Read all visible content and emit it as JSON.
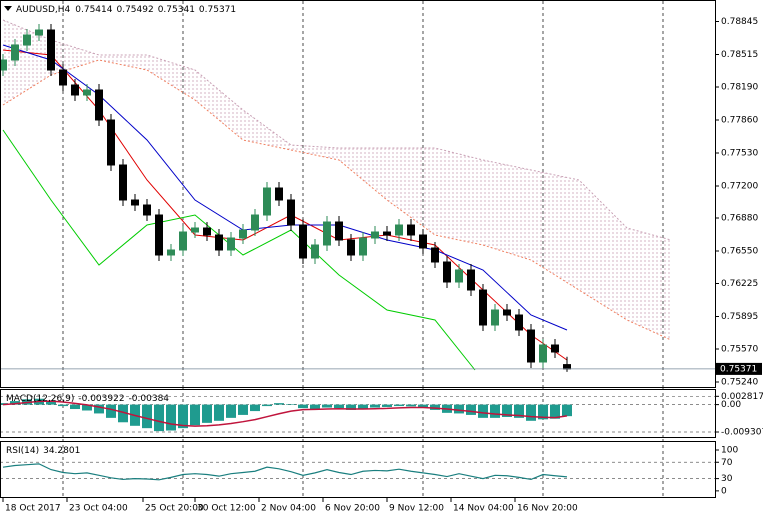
{
  "chart_data": [
    {
      "type": "candlestick",
      "title": "AUDUSD,H4",
      "x": [
        0,
        3,
        6,
        9,
        12,
        15,
        18,
        21,
        24,
        27,
        30,
        33,
        36,
        39,
        42,
        45,
        48,
        51,
        54,
        57,
        60,
        63,
        66,
        69,
        72,
        75,
        78,
        81,
        84,
        87,
        90,
        93,
        96,
        99,
        102,
        105,
        108,
        111,
        114,
        117,
        120,
        123,
        126,
        129,
        132,
        135,
        138,
        141
      ],
      "open": [
        0.7836,
        0.7846,
        0.7861,
        0.7871,
        0.7876,
        0.7836,
        0.7821,
        0.7811,
        0.7816,
        0.7786,
        0.7741,
        0.7706,
        0.7701,
        0.7691,
        0.7651,
        0.7656,
        0.7674,
        0.7678,
        0.7671,
        0.7656,
        0.7668,
        0.7676,
        0.7691,
        0.7718,
        0.7706,
        0.7681,
        0.7648,
        0.7661,
        0.7684,
        0.7666,
        0.7651,
        0.7668,
        0.7674,
        0.7671,
        0.7681,
        0.7671,
        0.7658,
        0.7644,
        0.7624,
        0.7636,
        0.7616,
        0.7581,
        0.7596,
        0.7591,
        0.7576,
        0.7544,
        0.7561,
        0.75414
      ],
      "high": [
        0.7852,
        0.7867,
        0.7877,
        0.7882,
        0.7882,
        0.7842,
        0.7827,
        0.7822,
        0.7822,
        0.7792,
        0.7747,
        0.7712,
        0.7707,
        0.7697,
        0.7662,
        0.768,
        0.7684,
        0.7684,
        0.7677,
        0.7674,
        0.7682,
        0.7697,
        0.7724,
        0.7724,
        0.7712,
        0.7687,
        0.7667,
        0.769,
        0.769,
        0.7672,
        0.7674,
        0.768,
        0.768,
        0.7687,
        0.7687,
        0.7677,
        0.7664,
        0.765,
        0.7642,
        0.7642,
        0.7622,
        0.7602,
        0.7602,
        0.7597,
        0.7582,
        0.7567,
        0.7567,
        0.75492
      ],
      "low": [
        0.783,
        0.784,
        0.7855,
        0.7865,
        0.783,
        0.7815,
        0.7805,
        0.7805,
        0.778,
        0.7735,
        0.77,
        0.7695,
        0.7685,
        0.7645,
        0.7645,
        0.765,
        0.7668,
        0.7665,
        0.765,
        0.765,
        0.7662,
        0.767,
        0.7685,
        0.77,
        0.7675,
        0.7642,
        0.7642,
        0.7655,
        0.766,
        0.7645,
        0.7645,
        0.7662,
        0.7665,
        0.7665,
        0.7665,
        0.7652,
        0.7638,
        0.7618,
        0.7618,
        0.761,
        0.7575,
        0.7575,
        0.7585,
        0.757,
        0.7538,
        0.7538,
        0.7548,
        0.75341
      ],
      "close": [
        0.7846,
        0.7861,
        0.7871,
        0.7876,
        0.7836,
        0.7821,
        0.7811,
        0.7816,
        0.7786,
        0.7741,
        0.7706,
        0.7701,
        0.7691,
        0.7651,
        0.7656,
        0.7674,
        0.7678,
        0.7671,
        0.7656,
        0.7668,
        0.7676,
        0.7691,
        0.7718,
        0.7706,
        0.7681,
        0.7648,
        0.7661,
        0.7684,
        0.7666,
        0.7651,
        0.7668,
        0.7674,
        0.7671,
        0.7681,
        0.7671,
        0.7658,
        0.7644,
        0.7624,
        0.7636,
        0.7616,
        0.7581,
        0.7596,
        0.7591,
        0.7576,
        0.7544,
        0.7561,
        0.7554,
        0.75371
      ],
      "up_color": "#2e8b57",
      "down_color": "#000000",
      "series": [
        {
          "color": "#e00000",
          "x": [
            0,
            12,
            24,
            36,
            48,
            60,
            72,
            84,
            96,
            108,
            120,
            132,
            141
          ],
          "values": [
            0.7856,
            0.7851,
            0.7796,
            0.7726,
            0.7671,
            0.7666,
            0.7691,
            0.7666,
            0.7671,
            0.7661,
            0.7616,
            0.7571,
            0.7546
          ]
        },
        {
          "color": "#0000c8",
          "x": [
            0,
            12,
            24,
            36,
            48,
            60,
            72,
            84,
            96,
            108,
            120,
            132,
            141
          ],
          "values": [
            0.7861,
            0.7846,
            0.7811,
            0.7766,
            0.7706,
            0.7676,
            0.7681,
            0.7681,
            0.7666,
            0.7656,
            0.7636,
            0.7591,
            0.7576
          ]
        },
        {
          "color": "#00cc00",
          "x": [
            0,
            12,
            24,
            36,
            48,
            60,
            72,
            84,
            96,
            108,
            118
          ],
          "values": [
            0.7776,
            0.7706,
            0.7641,
            0.7681,
            0.7691,
            0.7651,
            0.7676,
            0.7631,
            0.7596,
            0.7586,
            0.7536
          ]
        }
      ],
      "cloud": [
        {
          "color": "#c8a0b4",
          "x": [
            0,
            12,
            24,
            36,
            48,
            60,
            72,
            84,
            96,
            108,
            120,
            132,
            144,
            156,
            167
          ],
          "values": [
            0.7886,
            0.7866,
            0.7851,
            0.7851,
            0.7836,
            0.7796,
            0.7761,
            0.7758,
            0.7758,
            0.7758,
            0.7746,
            0.7736,
            0.7726,
            0.7678,
            0.7666
          ]
        },
        {
          "color": "#f08060",
          "x": [
            0,
            12,
            24,
            36,
            48,
            60,
            72,
            84,
            96,
            108,
            120,
            132,
            144,
            156,
            167
          ],
          "values": [
            0.7801,
            0.7831,
            0.7846,
            0.7836,
            0.7806,
            0.7766,
            0.7756,
            0.7746,
            0.7706,
            0.7671,
            0.7661,
            0.7646,
            0.7616,
            0.7586,
            0.7566
          ]
        }
      ],
      "xlim": [
        -0.75,
        178
      ],
      "ylim": [
        0.7519,
        0.7903
      ],
      "yticks": [
        0.78845,
        0.78515,
        {
          "value": 0.7819,
          "label": "0.78190"
        },
        {
          "value": 0.7786,
          "label": "0.77860"
        },
        {
          "value": 0.7753,
          "label": "0.77530"
        },
        {
          "value": 0.772,
          "label": "0.77200"
        },
        {
          "value": 0.7688,
          "label": "0.76880"
        },
        {
          "value": 0.7655,
          "label": "0.76550"
        },
        0.76225,
        0.75895,
        {
          "value": 0.7557,
          "label": "0.75570"
        },
        {
          "value": 0.7524,
          "label": "0.75240"
        }
      ],
      "xticks": [
        {
          "value": 0,
          "label": "18 Oct 2017"
        },
        {
          "value": 16,
          "label": "23 Oct 04:00"
        },
        {
          "value": 35,
          "label": "25 Oct 20:00"
        },
        {
          "value": 48,
          "label": "30 Oct 12:00"
        },
        {
          "value": 64,
          "label": "2 Nov 04:00"
        },
        {
          "value": 80,
          "label": "6 Nov 20:00"
        },
        {
          "value": 96,
          "label": "9 Nov 12:00"
        },
        {
          "value": 112,
          "label": "14 Nov 04:00"
        },
        {
          "value": 128,
          "label": "16 Nov 20:00"
        }
      ]
    },
    {
      "type": "macd",
      "title": "MACD(12,26,9)",
      "x": [
        0,
        3,
        6,
        9,
        12,
        15,
        18,
        21,
        24,
        27,
        30,
        33,
        36,
        39,
        42,
        45,
        48,
        51,
        54,
        57,
        60,
        63,
        66,
        69,
        72,
        75,
        78,
        81,
        84,
        87,
        90,
        93,
        96,
        99,
        102,
        105,
        108,
        111,
        114,
        117,
        120,
        123,
        126,
        129,
        132,
        135,
        138,
        141
      ],
      "macd": [
        0.0005,
        0.0012,
        0.0018,
        0.002,
        0.001,
        -0.0005,
        -0.0015,
        -0.002,
        -0.003,
        -0.0045,
        -0.006,
        -0.0072,
        -0.008,
        -0.009,
        -0.0088,
        -0.008,
        -0.007,
        -0.0062,
        -0.0055,
        -0.0045,
        -0.0035,
        -0.0022,
        -0.0005,
        0.0005,
        0.0002,
        -0.0012,
        -0.0015,
        -0.001,
        -0.0012,
        -0.0018,
        -0.0015,
        -0.001,
        -0.0008,
        -0.0005,
        -0.0006,
        -0.001,
        -0.0018,
        -0.0028,
        -0.003,
        -0.0035,
        -0.0045,
        -0.0045,
        -0.0042,
        -0.0045,
        -0.0055,
        -0.005,
        -0.0048,
        -0.003922
      ],
      "signal": [
        0,
        0.0003,
        0.0007,
        0.0011,
        0.0012,
        0.0009,
        0.0004,
        -0.0001,
        -0.0008,
        -0.0016,
        -0.0026,
        -0.0037,
        -0.0047,
        -0.0057,
        -0.0066,
        -0.0071,
        -0.0073,
        -0.0072,
        -0.0069,
        -0.0064,
        -0.0058,
        -0.0051,
        -0.0041,
        -0.0031,
        -0.0022,
        -0.0017,
        -0.0016,
        -0.0015,
        -0.0014,
        -0.0015,
        -0.0015,
        -0.0014,
        -0.0013,
        -0.0011,
        -0.001,
        -0.001,
        -0.0012,
        -0.0015,
        -0.0019,
        -0.0023,
        -0.0028,
        -0.0032,
        -0.0035,
        -0.0037,
        -0.0041,
        -0.0043,
        -0.0044,
        -0.00384
      ],
      "bar_color": "#1f9b8f",
      "line_color": "#c0143c",
      "xlim": [
        -0.75,
        178
      ],
      "ylim": [
        -0.011,
        0.0053
      ],
      "yticks": [
        0.002817,
        {
          "value": 0,
          "label": "0.00"
        },
        -0.009307
      ]
    },
    {
      "type": "line",
      "title": "RSI(14)",
      "x": [
        0,
        3,
        6,
        9,
        12,
        15,
        18,
        21,
        24,
        27,
        30,
        33,
        36,
        39,
        42,
        45,
        48,
        51,
        54,
        57,
        60,
        63,
        66,
        69,
        72,
        75,
        78,
        81,
        84,
        87,
        90,
        93,
        96,
        99,
        102,
        105,
        108,
        111,
        114,
        117,
        120,
        123,
        126,
        129,
        132,
        135,
        138,
        141
      ],
      "values": [
        58,
        62,
        64,
        66,
        52,
        45,
        42,
        44,
        38,
        32,
        28,
        30,
        29,
        27,
        33,
        40,
        42,
        40,
        36,
        42,
        45,
        48,
        58,
        54,
        47,
        38,
        44,
        52,
        45,
        40,
        48,
        50,
        49,
        53,
        48,
        44,
        40,
        35,
        42,
        36,
        30,
        38,
        37,
        33,
        28,
        40,
        37,
        34.2801
      ],
      "color": "#1a7f7f",
      "xlim": [
        -0.75,
        178
      ],
      "ylim": [
        -15,
        122
      ],
      "yticks": [
        100,
        70,
        30,
        0
      ]
    }
  ]
}
